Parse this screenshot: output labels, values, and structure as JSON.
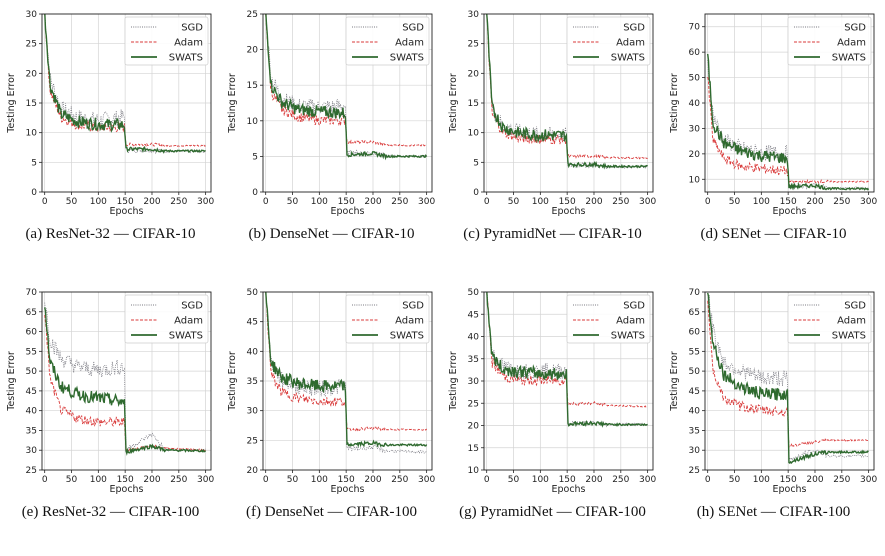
{
  "figure": {
    "legend_labels": [
      "SGD",
      "Adam",
      "SWATS"
    ],
    "xlabel": "Epochs",
    "ylabel": "Testing Error",
    "colors": {
      "SGD": "#7a7a82",
      "Adam": "#d93a3a",
      "SWATS": "#2f6a2f"
    }
  },
  "chart_data": [
    {
      "type": "line",
      "caption": "(a) ResNet-32 — CIFAR-10",
      "xlim": [
        -5,
        310
      ],
      "ylim": [
        0,
        30
      ],
      "xticks": [
        0,
        50,
        100,
        150,
        200,
        250,
        300
      ],
      "yticks": [
        0,
        5,
        10,
        15,
        20,
        25,
        30
      ],
      "legend_position": "top-right",
      "series": [
        {
          "name": "SGD",
          "x": [
            0,
            10,
            30,
            60,
            100,
            149,
            151,
            200,
            225,
            300
          ],
          "y": [
            30,
            19,
            14,
            12.5,
            12,
            12.5,
            7,
            7,
            6.8,
            6.8
          ]
        },
        {
          "name": "Adam",
          "x": [
            0,
            10,
            30,
            60,
            100,
            149,
            151,
            200,
            225,
            300
          ],
          "y": [
            30,
            17,
            12.5,
            11.2,
            10.8,
            10.8,
            8,
            8,
            7.8,
            7.8
          ]
        },
        {
          "name": "SWATS",
          "x": [
            0,
            10,
            30,
            60,
            100,
            149,
            151,
            200,
            225,
            300
          ],
          "y": [
            30,
            18,
            13,
            11.8,
            11.3,
            11.2,
            7.2,
            7.2,
            6.9,
            6.9
          ]
        }
      ]
    },
    {
      "type": "line",
      "caption": "(b) DenseNet — CIFAR-10",
      "xlim": [
        -5,
        310
      ],
      "ylim": [
        0,
        25
      ],
      "xticks": [
        0,
        50,
        100,
        150,
        200,
        250,
        300
      ],
      "yticks": [
        0,
        5,
        10,
        15,
        20,
        25
      ],
      "legend_position": "top-right",
      "series": [
        {
          "name": "SGD",
          "x": [
            0,
            10,
            30,
            60,
            100,
            149,
            151,
            200,
            225,
            300
          ],
          "y": [
            25,
            16,
            13,
            12,
            11.8,
            12,
            5.5,
            5.5,
            5,
            5
          ]
        },
        {
          "name": "Adam",
          "x": [
            0,
            10,
            30,
            60,
            100,
            149,
            151,
            200,
            225,
            300
          ],
          "y": [
            25,
            14,
            11.5,
            10.5,
            10,
            10,
            7,
            7,
            6.6,
            6.5
          ]
        },
        {
          "name": "SWATS",
          "x": [
            0,
            10,
            30,
            60,
            100,
            149,
            151,
            200,
            225,
            300
          ],
          "y": [
            25,
            15,
            12.5,
            11.5,
            11.2,
            11,
            5.2,
            5.4,
            5,
            5
          ]
        }
      ]
    },
    {
      "type": "line",
      "caption": "(c) PyramidNet — CIFAR-10",
      "xlim": [
        -5,
        310
      ],
      "ylim": [
        0,
        30
      ],
      "xticks": [
        0,
        50,
        100,
        150,
        200,
        250,
        300
      ],
      "yticks": [
        0,
        5,
        10,
        15,
        20,
        25,
        30
      ],
      "legend_position": "top-right",
      "series": [
        {
          "name": "SGD",
          "x": [
            0,
            10,
            30,
            60,
            100,
            149,
            151,
            200,
            225,
            300
          ],
          "y": [
            30,
            14,
            11,
            10,
            9.5,
            9.5,
            4.5,
            4.5,
            4.2,
            4.2
          ]
        },
        {
          "name": "Adam",
          "x": [
            0,
            10,
            30,
            60,
            100,
            149,
            151,
            200,
            225,
            300
          ],
          "y": [
            30,
            13,
            10,
            9,
            8.8,
            8.8,
            6,
            6,
            5.8,
            5.7
          ]
        },
        {
          "name": "SWATS",
          "x": [
            0,
            10,
            30,
            60,
            100,
            149,
            151,
            200,
            225,
            300
          ],
          "y": [
            30,
            14,
            10.8,
            9.8,
            9.5,
            9.4,
            4.6,
            4.6,
            4.3,
            4.3
          ]
        }
      ]
    },
    {
      "type": "line",
      "caption": "(d) SENet — CIFAR-10",
      "xlim": [
        -5,
        310
      ],
      "ylim": [
        5,
        75
      ],
      "xticks": [
        0,
        50,
        100,
        150,
        200,
        250,
        300
      ],
      "yticks": [
        10,
        20,
        30,
        40,
        50,
        60,
        70
      ],
      "legend_position": "top-right",
      "series": [
        {
          "name": "SGD",
          "x": [
            0,
            10,
            30,
            60,
            100,
            149,
            151,
            200,
            225,
            300
          ],
          "y": [
            55,
            35,
            25,
            22,
            20,
            20,
            7,
            7.5,
            6.5,
            6.5
          ]
        },
        {
          "name": "Adam",
          "x": [
            0,
            10,
            30,
            60,
            100,
            149,
            151,
            200,
            225,
            300
          ],
          "y": [
            50,
            25,
            18,
            15,
            14,
            13,
            9,
            9,
            9,
            9
          ]
        },
        {
          "name": "SWATS",
          "x": [
            0,
            10,
            30,
            60,
            100,
            149,
            151,
            200,
            225,
            300
          ],
          "y": [
            58,
            32,
            24,
            21,
            19,
            18,
            7,
            7.5,
            6.3,
            6.2
          ]
        }
      ]
    },
    {
      "type": "line",
      "caption": "(e) ResNet-32 — CIFAR-100",
      "xlim": [
        -5,
        310
      ],
      "ylim": [
        25,
        70
      ],
      "xticks": [
        0,
        50,
        100,
        150,
        200,
        250,
        300
      ],
      "yticks": [
        25,
        30,
        35,
        40,
        45,
        50,
        55,
        60,
        65,
        70
      ],
      "legend_position": "top-right",
      "series": [
        {
          "name": "SGD",
          "x": [
            0,
            10,
            30,
            60,
            100,
            149,
            151,
            200,
            225,
            300
          ],
          "y": [
            68,
            58,
            53,
            51,
            50,
            51,
            30,
            34,
            30,
            30
          ]
        },
        {
          "name": "Adam",
          "x": [
            0,
            10,
            30,
            60,
            100,
            149,
            151,
            200,
            225,
            300
          ],
          "y": [
            65,
            48,
            40,
            38,
            37,
            37,
            30,
            31,
            30.5,
            30
          ]
        },
        {
          "name": "SWATS",
          "x": [
            0,
            10,
            30,
            60,
            100,
            149,
            151,
            200,
            225,
            300
          ],
          "y": [
            67,
            52,
            46,
            44,
            43,
            42,
            29.5,
            31,
            30,
            29.8
          ]
        }
      ]
    },
    {
      "type": "line",
      "caption": "(f) DenseNet — CIFAR-100",
      "xlim": [
        -5,
        310
      ],
      "ylim": [
        20,
        50
      ],
      "xticks": [
        0,
        50,
        100,
        150,
        200,
        250,
        300
      ],
      "yticks": [
        20,
        25,
        30,
        35,
        40,
        45,
        50
      ],
      "legend_position": "top-right",
      "series": [
        {
          "name": "SGD",
          "x": [
            0,
            10,
            30,
            60,
            100,
            149,
            151,
            200,
            225,
            300
          ],
          "y": [
            50,
            38,
            35,
            34,
            33.5,
            34,
            23.5,
            23.8,
            23.2,
            23
          ]
        },
        {
          "name": "Adam",
          "x": [
            0,
            10,
            30,
            60,
            100,
            149,
            151,
            200,
            225,
            300
          ],
          "y": [
            50,
            36,
            33,
            32,
            31.5,
            31.5,
            26.8,
            27,
            26.8,
            26.8
          ]
        },
        {
          "name": "SWATS",
          "x": [
            0,
            10,
            30,
            60,
            100,
            149,
            151,
            200,
            225,
            300
          ],
          "y": [
            50,
            38,
            35.5,
            34.5,
            34,
            34,
            24.2,
            24.5,
            24.2,
            24.2
          ]
        }
      ]
    },
    {
      "type": "line",
      "caption": "(g) PyramidNet — CIFAR-100",
      "xlim": [
        -5,
        310
      ],
      "ylim": [
        10,
        50
      ],
      "xticks": [
        0,
        50,
        100,
        150,
        200,
        250,
        300
      ],
      "yticks": [
        10,
        15,
        20,
        25,
        30,
        35,
        40,
        45,
        50
      ],
      "legend_position": "top-right",
      "series": [
        {
          "name": "SGD",
          "x": [
            0,
            10,
            30,
            60,
            100,
            149,
            151,
            200,
            225,
            300
          ],
          "y": [
            50,
            36,
            33,
            32,
            32,
            32,
            20.5,
            20.5,
            20.3,
            20.2
          ]
        },
        {
          "name": "Adam",
          "x": [
            0,
            10,
            30,
            60,
            100,
            149,
            151,
            200,
            225,
            300
          ],
          "y": [
            50,
            34,
            31,
            30,
            30,
            30,
            24.8,
            25,
            24.5,
            24.2
          ]
        },
        {
          "name": "SWATS",
          "x": [
            0,
            10,
            30,
            60,
            100,
            149,
            151,
            200,
            225,
            300
          ],
          "y": [
            50,
            35.5,
            32.5,
            32,
            31.5,
            31.5,
            20.3,
            20.5,
            20.2,
            20.2
          ]
        }
      ]
    },
    {
      "type": "line",
      "caption": "(h) SENet — CIFAR-100",
      "xlim": [
        -5,
        310
      ],
      "ylim": [
        25,
        70
      ],
      "xticks": [
        0,
        50,
        100,
        150,
        200,
        250,
        300
      ],
      "yticks": [
        25,
        30,
        35,
        40,
        45,
        50,
        55,
        60,
        65,
        70
      ],
      "legend_position": "top-right",
      "series": [
        {
          "name": "SGD",
          "x": [
            0,
            10,
            30,
            60,
            100,
            149,
            151,
            200,
            225,
            300
          ],
          "y": [
            70,
            60,
            52,
            50,
            48,
            48,
            27.5,
            30,
            28.5,
            28.5
          ]
        },
        {
          "name": "Adam",
          "x": [
            0,
            10,
            30,
            60,
            100,
            149,
            151,
            200,
            225,
            300
          ],
          "y": [
            68,
            50,
            43,
            41,
            40,
            39.5,
            31,
            32,
            32.5,
            32.5
          ]
        },
        {
          "name": "SWATS",
          "x": [
            0,
            10,
            30,
            60,
            100,
            149,
            151,
            200,
            225,
            300
          ],
          "y": [
            70,
            57,
            49,
            46,
            44,
            44,
            27,
            29,
            29.5,
            29.5
          ]
        }
      ]
    }
  ]
}
